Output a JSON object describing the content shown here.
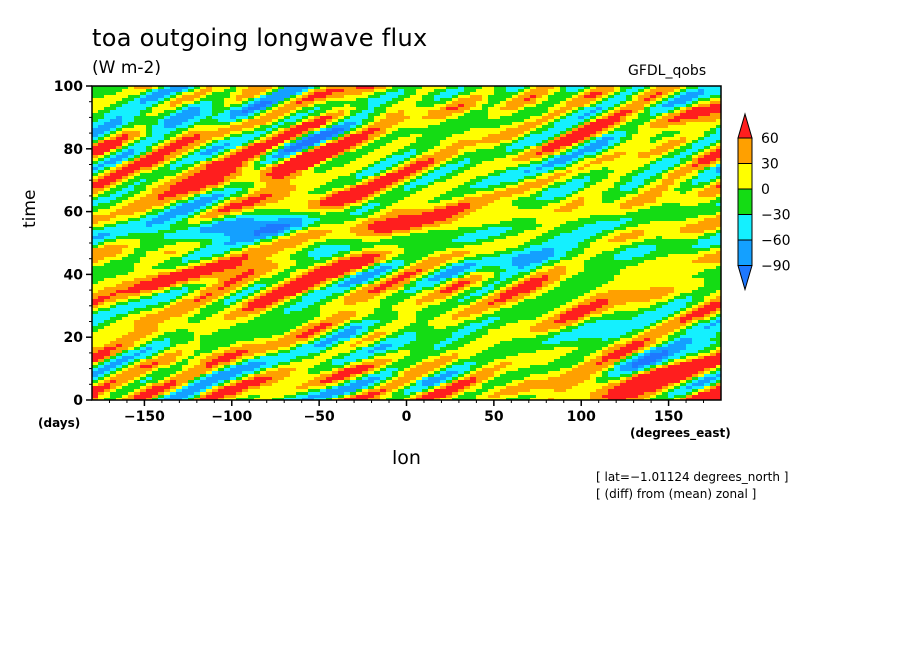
{
  "chart_data": {
    "type": "heatmap",
    "title": "toa outgoing longwave flux",
    "units": "(W m-2)",
    "model": "GFDL_qobs",
    "xlabel": "lon",
    "ylabel": "time",
    "x_unit": "(degrees_east)",
    "y_unit": "(days)",
    "xlim": [
      -180,
      180
    ],
    "ylim": [
      0,
      100
    ],
    "xticks": [
      -150,
      -100,
      -50,
      0,
      50,
      100,
      150
    ],
    "xtick_labels": [
      "−150",
      "−100",
      "−50",
      "0",
      "50",
      "100",
      "150"
    ],
    "yticks": [
      0,
      20,
      40,
      60,
      80,
      100
    ],
    "ytick_labels": [
      "0",
      "20",
      "40",
      "60",
      "80",
      "100"
    ],
    "colorbar": {
      "levels": [
        -90,
        -60,
        -30,
        0,
        30,
        60
      ],
      "level_labels": [
        "−90",
        "−60",
        "−30",
        "0",
        "30",
        "60"
      ],
      "colors": [
        "#1e78ff",
        "#14a0ff",
        "#14f0ff",
        "#14dc14",
        "#ffff00",
        "#ffa000",
        "#ff1e1e"
      ]
    },
    "annotations": [
      "[ lat=−1.01124 degrees_north ]",
      "[ (diff) from (mean) zonal ]"
    ]
  }
}
